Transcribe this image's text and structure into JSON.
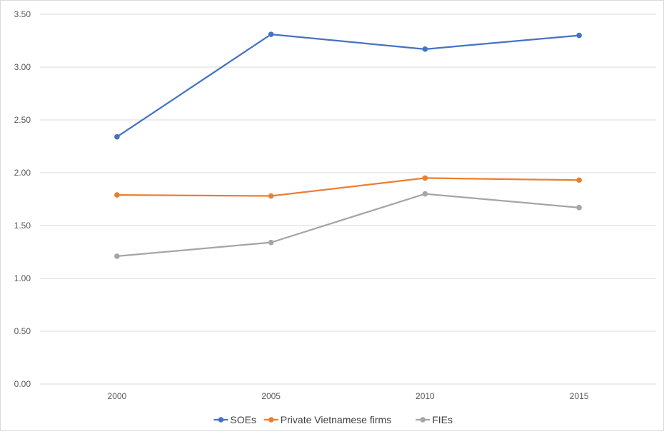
{
  "chart_data": {
    "type": "line",
    "title": "",
    "xlabel": "",
    "ylabel": "",
    "categories": [
      "2000",
      "2005",
      "2010",
      "2015"
    ],
    "ylim": [
      0,
      3.5
    ],
    "yticks": [
      "0.00",
      "0.50",
      "1.00",
      "1.50",
      "2.00",
      "2.50",
      "3.00",
      "3.50"
    ],
    "grid": true,
    "legend_position": "bottom",
    "series": [
      {
        "name": "SOEs",
        "color": "#4472c4",
        "values": [
          2.34,
          3.31,
          3.17,
          3.3
        ]
      },
      {
        "name": "Private Vietnamese firms",
        "color": "#ed7d31",
        "values": [
          1.79,
          1.78,
          1.95,
          1.93
        ]
      },
      {
        "name": "FIEs",
        "color": "#a5a5a5",
        "values": [
          1.21,
          1.34,
          1.8,
          1.67
        ]
      }
    ]
  }
}
